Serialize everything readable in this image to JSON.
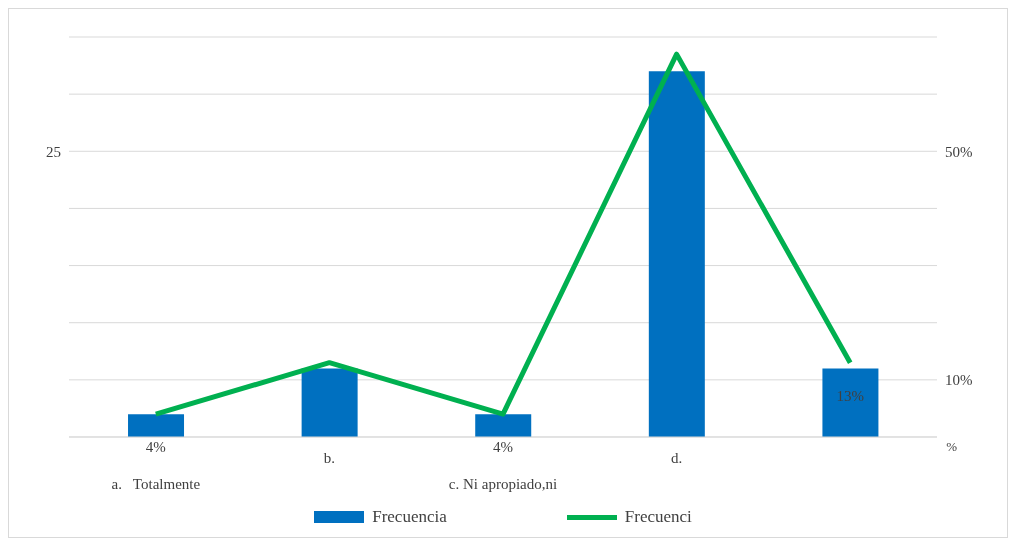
{
  "chart_data": {
    "type": "bar",
    "categories": [
      "a.   Totalmente",
      "b.",
      "c. Ni apropiado,ni",
      "d.",
      null
    ],
    "series": [
      {
        "name": "Frecuencia",
        "color": "#0070c0",
        "values": [
          2,
          6,
          2,
          32,
          6
        ]
      },
      {
        "name": "Frecuenci",
        "type": "line",
        "axis": "y2",
        "color": "#00b050",
        "values": [
          4,
          13,
          4,
          67,
          13
        ],
        "value_labels": [
          "4%",
          null,
          "4%",
          null,
          "13%"
        ]
      }
    ],
    "ylim": [
      0,
      35
    ],
    "yticks": [
      {
        "value": 0,
        "label": null
      },
      {
        "value": 5,
        "label": null
      },
      {
        "value": 10,
        "label": null
      },
      {
        "value": 15,
        "label": null
      },
      {
        "value": 20,
        "label": null
      },
      25,
      {
        "value": 30,
        "label": null
      },
      {
        "value": 35,
        "label": null
      }
    ],
    "y2lim": [
      0,
      70
    ],
    "y2ticks": [
      {
        "value": 10,
        "label": "10%"
      },
      {
        "value": 50,
        "label": "50%"
      }
    ],
    "grid": "y",
    "legend": "bottom",
    "marker": "none",
    "line_style": "solid",
    "annotations": [
      "%"
    ]
  }
}
